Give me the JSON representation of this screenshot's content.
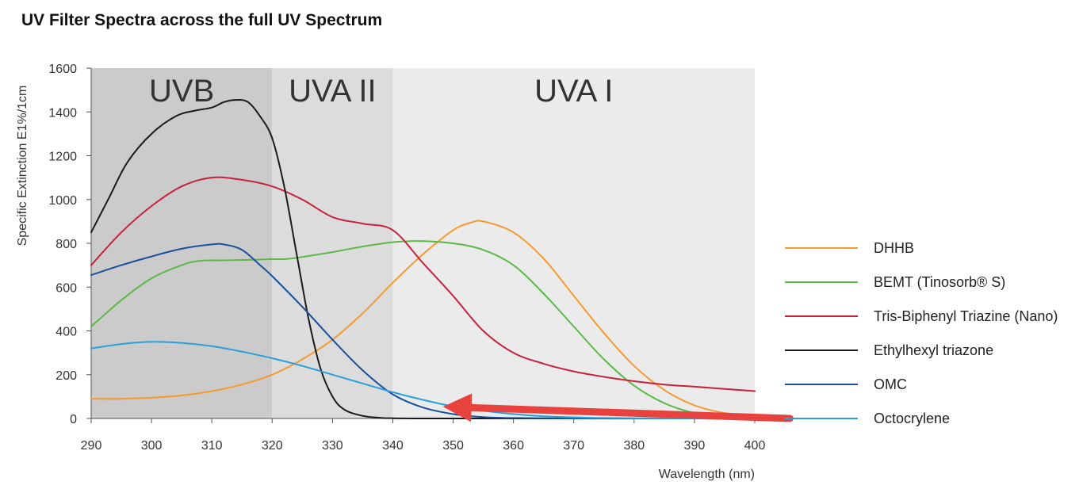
{
  "title": "UV Filter Spectra across the full UV Spectrum",
  "chart_data": {
    "type": "line",
    "title": "UV Filter Spectra across the full UV Spectrum",
    "xlabel": "Wavelength (nm)",
    "ylabel": "Specific Extinction E1%/1cm",
    "xlim": [
      290,
      400
    ],
    "ylim": [
      0,
      1600
    ],
    "xticks": [
      290,
      300,
      310,
      320,
      330,
      340,
      350,
      360,
      370,
      380,
      390,
      400
    ],
    "yticks": [
      0,
      200,
      400,
      600,
      800,
      1000,
      1200,
      1400,
      1600
    ],
    "grid": false,
    "legend_position": "right",
    "regions": [
      {
        "label": "UVB",
        "x": [
          290,
          320
        ],
        "color": "#cbcbcc"
      },
      {
        "label": "UVA II",
        "x": [
          320,
          340
        ],
        "color": "#dcdcdd"
      },
      {
        "label": "UVA I",
        "x": [
          340,
          400
        ],
        "color": "#ebebec"
      }
    ],
    "series": [
      {
        "name": "DHHB",
        "color": "#f59a2e",
        "x": [
          290,
          295,
          300,
          305,
          310,
          315,
          320,
          325,
          330,
          335,
          340,
          345,
          350,
          353,
          355,
          360,
          365,
          370,
          375,
          380,
          385,
          390,
          395,
          400
        ],
        "y": [
          90,
          90,
          95,
          105,
          125,
          155,
          200,
          270,
          360,
          480,
          620,
          750,
          860,
          895,
          900,
          850,
          730,
          560,
          390,
          240,
          130,
          60,
          25,
          10
        ]
      },
      {
        "name": "BEMT (Tinosorb® S)",
        "color": "#5cb848",
        "x": [
          290,
          295,
          300,
          305,
          308,
          312,
          317,
          320,
          323,
          330,
          335,
          340,
          345,
          350,
          355,
          360,
          365,
          370,
          375,
          380,
          385,
          390,
          395,
          400
        ],
        "y": [
          420,
          540,
          640,
          700,
          720,
          722,
          725,
          728,
          730,
          760,
          785,
          805,
          810,
          800,
          770,
          700,
          570,
          420,
          270,
          150,
          70,
          25,
          8,
          2
        ]
      },
      {
        "name": "Tris-Biphenyl Triazine (Nano)",
        "color": "#c8213c",
        "x": [
          290,
          295,
          300,
          305,
          310,
          315,
          320,
          325,
          330,
          335,
          340,
          345,
          350,
          355,
          360,
          365,
          370,
          375,
          380,
          385,
          390,
          395,
          400
        ],
        "y": [
          700,
          850,
          970,
          1060,
          1100,
          1090,
          1060,
          1000,
          920,
          890,
          860,
          710,
          560,
          400,
          300,
          250,
          215,
          190,
          170,
          155,
          145,
          135,
          125
        ]
      },
      {
        "name": "Ethylhexyl triazone",
        "color": "#1a1a1a",
        "x": [
          290,
          293,
          296,
          300,
          304,
          307,
          310,
          312,
          314,
          316,
          318,
          320,
          322,
          324,
          326,
          328,
          330,
          332,
          335,
          338,
          340,
          345,
          350,
          360,
          370,
          380,
          390,
          400
        ],
        "y": [
          850,
          1010,
          1170,
          1300,
          1380,
          1405,
          1420,
          1445,
          1455,
          1445,
          1380,
          1280,
          1060,
          760,
          460,
          230,
          100,
          40,
          12,
          3,
          1,
          0,
          0,
          0,
          0,
          0,
          0,
          0
        ]
      },
      {
        "name": "OMC",
        "color": "#1a4f9c",
        "x": [
          290,
          295,
          300,
          305,
          310,
          312,
          315,
          318,
          320,
          325,
          330,
          335,
          340,
          345,
          350,
          355,
          360,
          370,
          380,
          390,
          400
        ],
        "y": [
          655,
          700,
          740,
          775,
          795,
          795,
          770,
          700,
          650,
          510,
          360,
          220,
          110,
          50,
          20,
          6,
          2,
          0,
          0,
          0,
          0
        ]
      },
      {
        "name": "Octocrylene",
        "color": "#2a9fd9",
        "x": [
          290,
          295,
          300,
          305,
          310,
          315,
          320,
          325,
          330,
          335,
          340,
          345,
          350,
          355,
          360,
          365,
          370,
          375,
          380,
          390,
          400
        ],
        "y": [
          320,
          340,
          350,
          345,
          330,
          305,
          275,
          240,
          200,
          160,
          120,
          85,
          55,
          35,
          20,
          10,
          5,
          2,
          1,
          0,
          0
        ]
      }
    ],
    "annotations": [
      {
        "type": "arrow",
        "color": "#e8423e",
        "from": [
          402,
          0
        ],
        "to": [
          352,
          95
        ]
      }
    ]
  }
}
